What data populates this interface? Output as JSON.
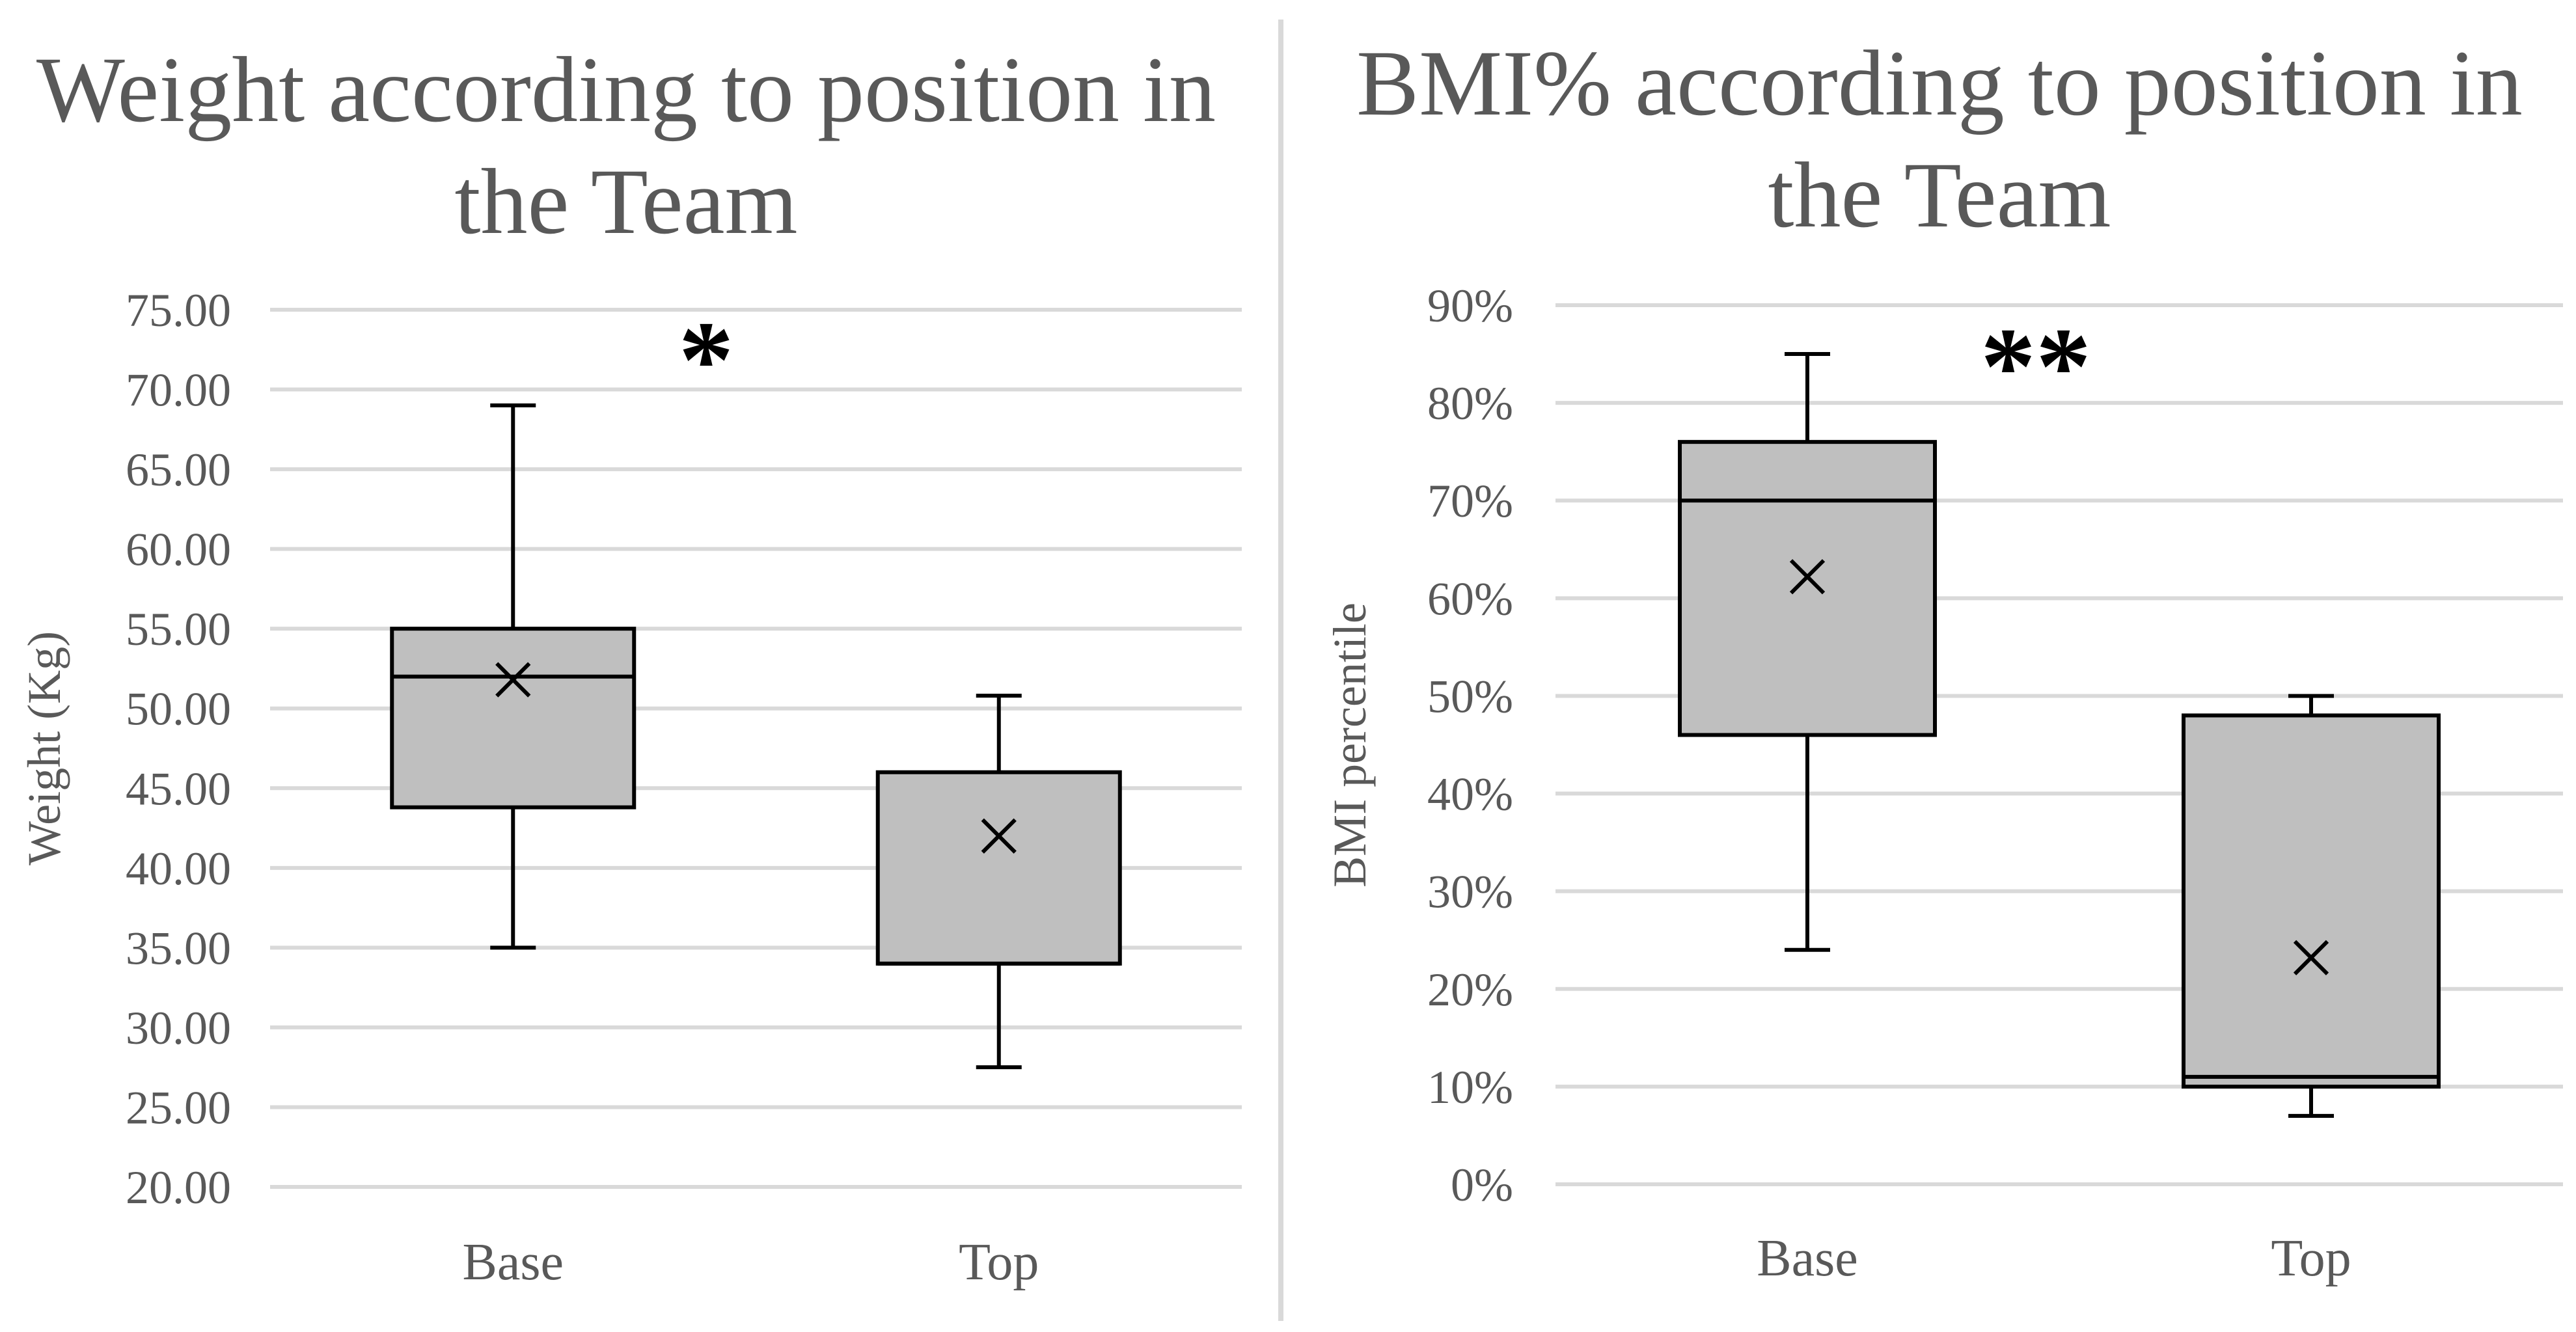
{
  "chart_data": [
    {
      "type": "box",
      "title_lines": [
        "Weight according to position in",
        "the Team"
      ],
      "ylabel": "Weight (Kg)",
      "xlabel": "",
      "ylim": [
        20,
        75
      ],
      "y_ticks": [
        "20.00",
        "25.00",
        "30.00",
        "35.00",
        "40.00",
        "45.00",
        "50.00",
        "55.00",
        "60.00",
        "65.00",
        "70.00",
        "75.00"
      ],
      "grid": true,
      "significance": "*",
      "categories": [
        "Base",
        "Top"
      ],
      "boxes": [
        {
          "category": "Base",
          "whisker_low": 35.0,
          "q1": 43.8,
          "median": 52.0,
          "q3": 55.0,
          "whisker_high": 69.0,
          "mean": 51.8
        },
        {
          "category": "Top",
          "whisker_low": 27.5,
          "q1": 34.0,
          "median": 34.0,
          "q3": 46.0,
          "whisker_high": 50.8,
          "mean": 42.0
        }
      ]
    },
    {
      "type": "box",
      "title_lines": [
        "BMI% according to position in",
        "the Team"
      ],
      "ylabel": "BMI percentile",
      "xlabel": "",
      "ylim": [
        0,
        90
      ],
      "y_ticks": [
        "0%",
        "10%",
        "20%",
        "30%",
        "40%",
        "50%",
        "60%",
        "70%",
        "80%",
        "90%"
      ],
      "grid": true,
      "significance": "**",
      "categories": [
        "Base",
        "Top"
      ],
      "boxes": [
        {
          "category": "Base",
          "whisker_low": 24,
          "q1": 46,
          "median": 70,
          "q3": 76,
          "whisker_high": 85,
          "mean": 62.2
        },
        {
          "category": "Top",
          "whisker_low": 7,
          "q1": 10,
          "median": 11,
          "q3": 48,
          "whisker_high": 50,
          "mean": 23.2
        }
      ]
    }
  ]
}
